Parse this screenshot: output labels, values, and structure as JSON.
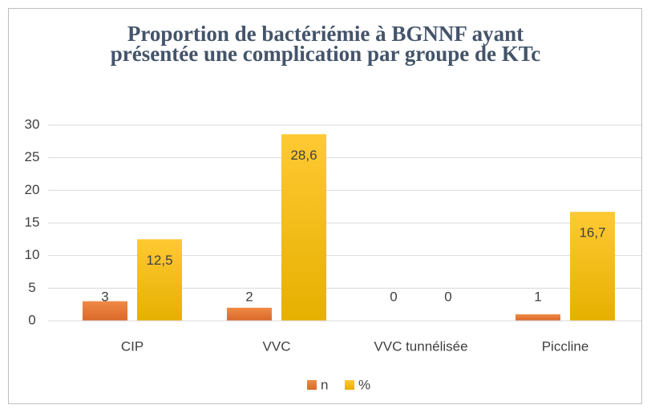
{
  "chart_data": {
    "type": "bar",
    "title": "Proportion de bactériémie à BGNNF ayant présentée une complication par groupe de KTc",
    "categories": [
      "CIP",
      "VVC",
      "VVC tunnélisée",
      "Piccline"
    ],
    "series": [
      {
        "name": "n",
        "color": "#ed7d31",
        "values": [
          3,
          2,
          0,
          1
        ]
      },
      {
        "name": "%",
        "color": "#ffc000",
        "values": [
          12.5,
          28.6,
          0,
          16.7
        ],
        "value_labels": [
          "12,5",
          "28,6",
          "0",
          "16,7"
        ]
      }
    ],
    "ylim": [
      0,
      30
    ],
    "yticks": [
      0,
      5,
      10,
      15,
      20,
      25,
      30
    ],
    "grid": true,
    "legend": "bottom"
  }
}
